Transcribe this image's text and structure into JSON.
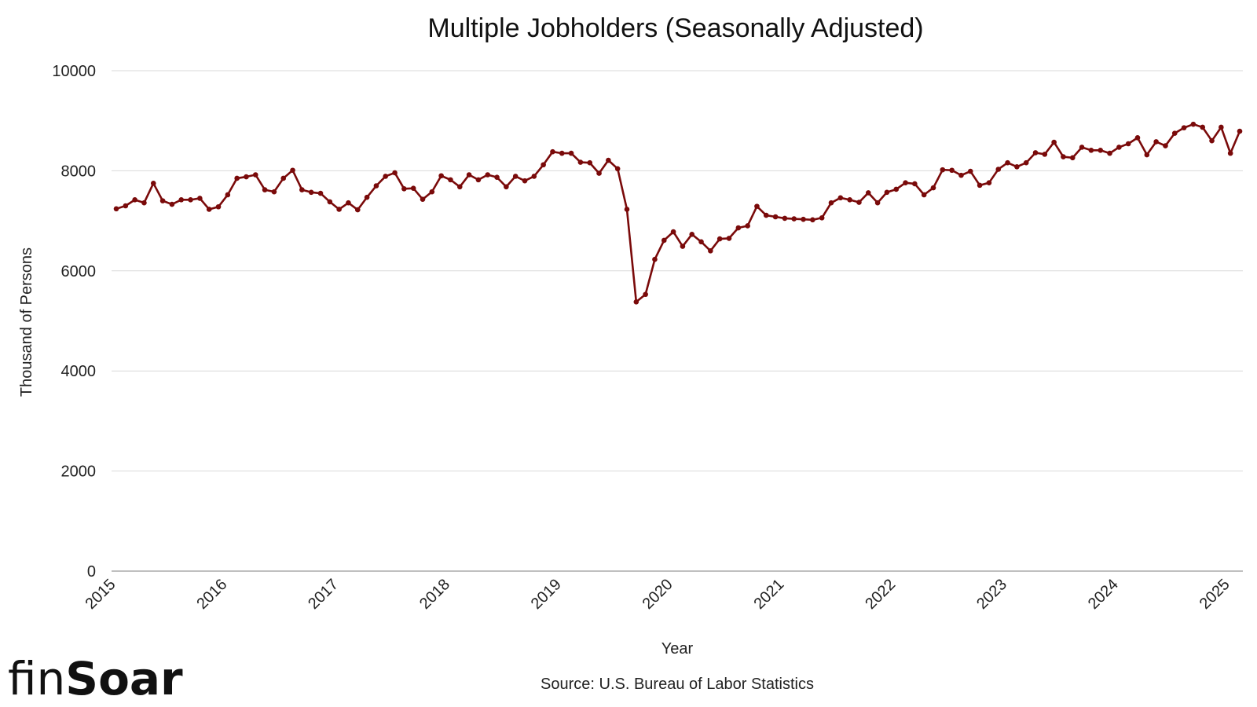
{
  "brand": {
    "name_light": "fin",
    "name_bold": "Soar"
  },
  "source": "Source: U.S. Bureau of Labor Statistics",
  "colors": {
    "line": "#7a0a0a",
    "grid": "#d9d9d9",
    "axis": "#999999"
  },
  "chart_data": {
    "type": "line",
    "title": "Multiple Jobholders (Seasonally Adjusted)",
    "xlabel": "Year",
    "ylabel": "Thousand of Persons",
    "ylim": [
      0,
      10000
    ],
    "yticks": [
      0,
      2000,
      4000,
      6000,
      8000,
      10000
    ],
    "xtick_labels": [
      "2015",
      "2016",
      "2017",
      "2018",
      "2019",
      "2020",
      "2021",
      "2022",
      "2023",
      "2024",
      "2025"
    ],
    "grid": true,
    "legend": "none",
    "start_period": "2015-01",
    "frequency": "monthly",
    "series": [
      {
        "values": [
          7240,
          7300,
          7420,
          7360,
          7750,
          7400,
          7330,
          7420,
          7420,
          7450,
          7230,
          7280,
          7520,
          7850,
          7880,
          7920,
          7620,
          7580,
          7850,
          8010,
          7620,
          7570,
          7550,
          7380,
          7230,
          7360,
          7220,
          7470,
          7700,
          7890,
          7960,
          7640,
          7650,
          7430,
          7580,
          7900,
          7820,
          7680,
          7920,
          7820,
          7920,
          7870,
          7680,
          7890,
          7800,
          7890,
          8120,
          8380,
          8350,
          8350,
          8170,
          8160,
          7950,
          8210,
          8040,
          7230,
          5380,
          5530,
          6230,
          6610,
          6780,
          6490,
          6730,
          6580,
          6400,
          6640,
          6650,
          6860,
          6900,
          7290,
          7110,
          7080,
          7050,
          7040,
          7030,
          7020,
          7060,
          7360,
          7460,
          7420,
          7370,
          7560,
          7360,
          7570,
          7630,
          7760,
          7740,
          7520,
          7660,
          8020,
          8010,
          7910,
          7990,
          7710,
          7760,
          8030,
          8160,
          8080,
          8160,
          8360,
          8330,
          8570,
          8280,
          8260,
          8470,
          8410,
          8410,
          8350,
          8470,
          8540,
          8660,
          8320,
          8580,
          8500,
          8750,
          8860,
          8930,
          8870,
          8600,
          8870,
          8350,
          8790
        ]
      }
    ]
  }
}
